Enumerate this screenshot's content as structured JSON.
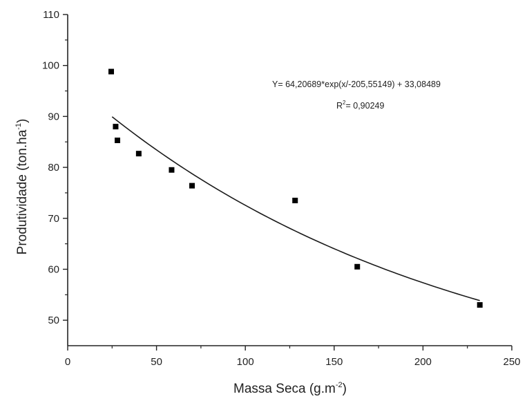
{
  "chart_data": {
    "type": "scatter",
    "title": "",
    "xlabel": "Massa Seca (g.m",
    "xlabel_sup": "-2",
    "xlabel_suffix": ")",
    "ylabel": "Produtividade (ton.ha",
    "ylabel_sup": "-1",
    "ylabel_suffix": ")",
    "xlim": [
      0,
      250
    ],
    "ylim": [
      45,
      110
    ],
    "xticks": [
      0,
      50,
      100,
      150,
      200,
      250
    ],
    "yticks": [
      50,
      60,
      70,
      80,
      90,
      100,
      110
    ],
    "grid": false,
    "legend": "none",
    "colors": {
      "marker": "#000000",
      "line": "#1a1a1a",
      "axis": "#222222"
    },
    "series": [
      {
        "type": "scatter",
        "marker": "square",
        "x": [
          24.5,
          27,
          28,
          40,
          58.5,
          70,
          128,
          163,
          232
        ],
        "y": [
          98.8,
          88.0,
          85.3,
          82.7,
          79.5,
          76.4,
          73.5,
          60.5,
          53.0
        ]
      }
    ],
    "fit": {
      "type": "exponential",
      "x_range": [
        25,
        232
      ],
      "A": 64.20689,
      "t": -205.55149,
      "y0": 33.08489
    },
    "annotations": {
      "equation": "Y= 64,20689*exp(x/-205,55149) + 33,08489",
      "r2_prefix": "R",
      "r2_sup": "2",
      "r2_value": "= 0,90249"
    }
  }
}
